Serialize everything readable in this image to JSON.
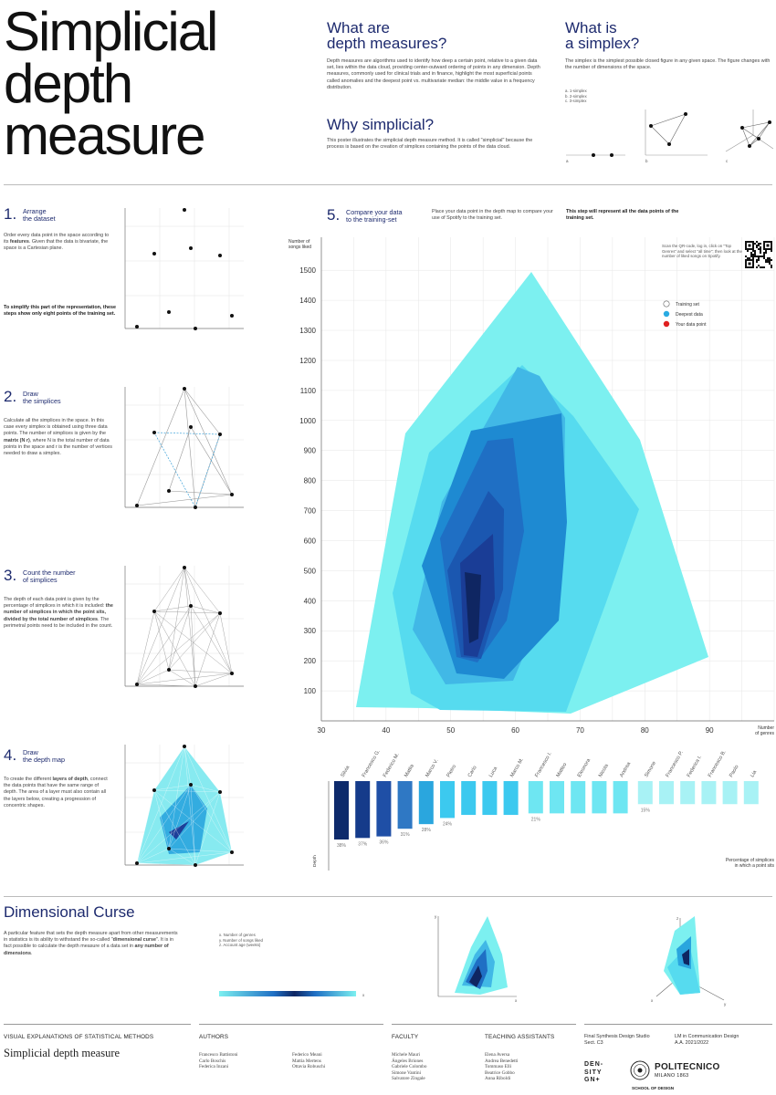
{
  "header": {
    "title_lines": [
      "Simplicial",
      "depth",
      "measure"
    ],
    "what_depth": {
      "heading_lines": [
        "What are",
        "depth measures?"
      ],
      "body": "Depth measures are algorithms used to identify how deep a certain point, relative to a given data set, lies within the data cloud, providing center-outward ordering of points in any dimension. Depth measures, commonly used for clinical trials and in finance, highlight the most superficial points called anomalies and the deepest point vs. multivariate median: the middle value in a frequency distribution."
    },
    "why_simplicial": {
      "heading": "Why simplicial?",
      "body": "This poster illustrates the simplicial depth measure method. It is called \"simplicial\" because the process is based on the creation of simplices containing the points of the data cloud."
    },
    "what_simplex": {
      "heading_lines": [
        "What is",
        "a simplex?"
      ],
      "body": "The simplex is the simplest possible closed figure in any given space. The figure changes with the number of dimensions of the space.",
      "legend": [
        "a. 1-simplex",
        "b. 2-simplex",
        "c. 3-simplex"
      ],
      "labels": [
        "a",
        "b",
        "c"
      ]
    }
  },
  "steps": [
    {
      "num": "1.",
      "title_lines": [
        "Arrange",
        "the dataset"
      ],
      "body": "Order every data point in the space according to its <b>features</b>. Given that the data is bivariate, the space is a Cartesian plane.",
      "note": "To simplify this part of the representation, these steps show only eight points of the training set."
    },
    {
      "num": "2.",
      "title_lines": [
        "Draw",
        "the simplices"
      ],
      "body": "Calculate all the simplices in the space. In this case every simplex is obtained using three data points. The number of simplices is given by the <b>matrix (N r)</b>, where N is the total number of data points in the space and r is the number of vertices needed to draw a simplex."
    },
    {
      "num": "3.",
      "title_lines": [
        "Count the number",
        "of simplices"
      ],
      "body": "The depth of each data point is given by the percentage of simplices in which it is included: <b>the number of simplices in which the point sits, divided by the total number of simplices</b>. The perimetral points need to be included in the count."
    },
    {
      "num": "4.",
      "title_lines": [
        "Draw",
        "the depth map"
      ],
      "body": "To create the different <b>layers of depth</b>, connect the data points that have the same range of depth. The area of a layer must also contain all the layers below, creating a progression of concentric shapes."
    },
    {
      "num": "5.",
      "title_lines": [
        "Compare your data",
        "to the training-set"
      ],
      "body": "Place your data point in the depth map to compare your use of Spotify to the training set.",
      "note": "This step will represent all the data points of the training set."
    }
  ],
  "depth_map": {
    "y_label_lines": [
      "Number of",
      "songs liked"
    ],
    "x_label_lines": [
      "Number",
      "of genres"
    ],
    "qr_text": "Scan the QR-code, log in, click on \"Top Genres\" and select \"all time\"; then look at the number of liked songs on Spotify.",
    "legend": [
      {
        "label": "Training set",
        "color": "#ffffff"
      },
      {
        "label": "Deepest data",
        "color": "#29abe2"
      },
      {
        "label": "Your data point",
        "color": "#e02020"
      }
    ]
  },
  "chart_data": {
    "type": "bar",
    "categories": [
      "Silvia",
      "Francesco G.",
      "Federico M.",
      "Mattia",
      "Marco V.",
      "Pietro",
      "Carlo",
      "Luca",
      "Marco M.",
      "Francesco I.",
      "Matteo",
      "Eleonora",
      "Nicola",
      "Andrea",
      "Simone",
      "Francesco P.",
      "Federica I.",
      "Francesco B.",
      "Paolo",
      "Lia"
    ],
    "values": [
      38,
      37,
      36,
      31,
      28,
      24,
      22,
      22,
      22,
      21,
      21,
      21,
      21,
      21,
      15,
      15,
      15,
      15,
      15,
      15
    ],
    "data_labels": [
      "38%",
      "37%",
      "36%",
      "31%",
      "28%",
      "24%",
      "",
      "",
      "",
      "21%",
      "",
      "",
      "",
      "",
      "15%",
      "",
      "",
      "",
      "",
      ""
    ],
    "ylabel": "Depth",
    "legend_lines": [
      "Percentage of simplices",
      "in which a point sits"
    ],
    "colors": [
      "#0d2a6b",
      "#153b8a",
      "#1f4fa6",
      "#2f78c4",
      "#2aa6de",
      "#3cc9ef",
      "#3cc9ef",
      "#3cc9ef",
      "#3cc9ef",
      "#6ee6f2",
      "#6ee6f2",
      "#6ee6f2",
      "#6ee6f2",
      "#6ee6f2",
      "#a8f2f5",
      "#a8f2f5",
      "#a8f2f5",
      "#a8f2f5",
      "#a8f2f5",
      "#a8f2f5"
    ]
  },
  "dimensional_curse": {
    "heading": "Dimensional Curse",
    "body": "A particular feature that sets the depth measure apart from other measurements in statistics is its ability to withstand the so-called \"<b>dimensional curse</b>\". It is in fact possible to calculate the depth measure of a data set in <b>any number of dimensions</b>.",
    "axis_legend": [
      "x. Number of genres",
      "y. Number of songs liked",
      "z. Account age (weeks)"
    ],
    "axis_letters": [
      "x",
      "y",
      "z"
    ]
  },
  "footer": {
    "course": "VISUAL EXPLANATIONS OF STATISTICAL METHODS",
    "project": "Simplicial depth measure",
    "authors_heading": "AUTHORS",
    "authors_col1": [
      "Francesco Battistoni",
      "Carlo Boschis",
      "Federica Inzani"
    ],
    "authors_col2": [
      "Federico Meani",
      "Mattia Mertens",
      "Ottavia Robuschi"
    ],
    "faculty_heading": "FACULTY",
    "faculty": [
      "Michele Mauri",
      "Ángeles Briones",
      "Gabriele Colombo",
      "Simone Vantini",
      "Salvatore Zingale"
    ],
    "ta_heading": "TEACHING ASSISTANTS",
    "ta": [
      "Elena Aversa",
      "Andrea Benedetti",
      "Tommaso Elli",
      "Beatrice Gobbo",
      "Anna Riboldi"
    ],
    "studio_lines": [
      "Final Synthesis Design Studio",
      "Sect. C3"
    ],
    "degree_lines": [
      "LM in Communication Design",
      "A.A. 2021/2022"
    ],
    "density_lines": [
      "DEN-",
      "SITY",
      "GN+"
    ],
    "polimi": "POLITECNICO",
    "polimi_sub": "MILANO 1863",
    "school": "SCHOOL OF DESIGN"
  }
}
